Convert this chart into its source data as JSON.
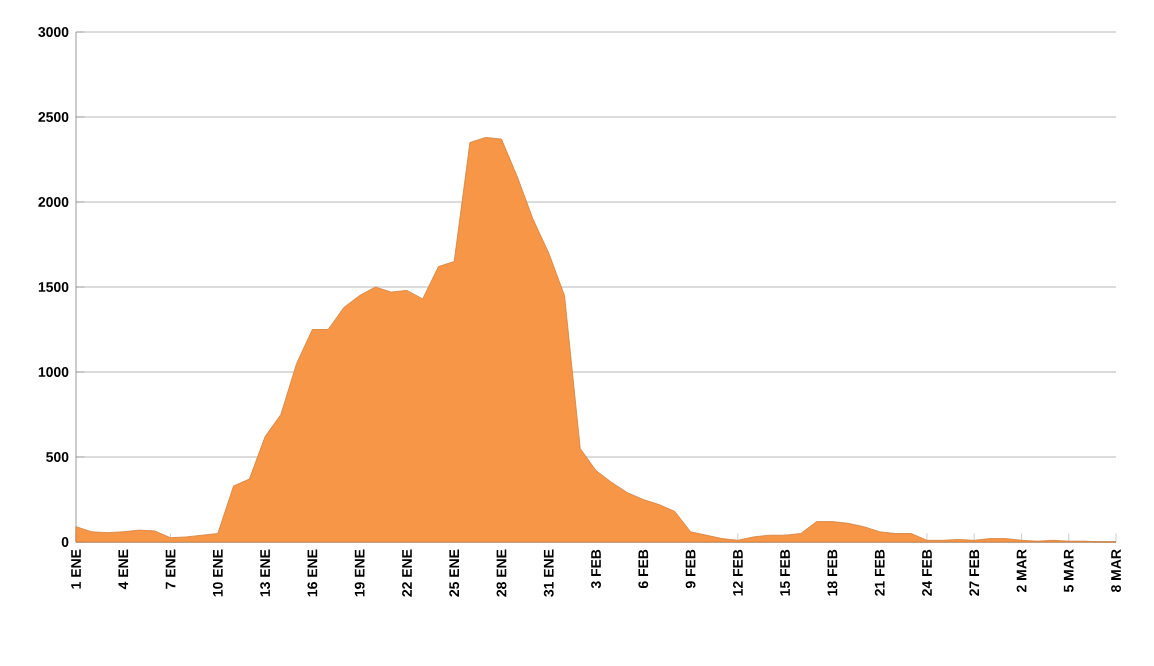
{
  "chart_data": {
    "type": "area",
    "categories": [
      "1 ENE",
      null,
      null,
      "4 ENE",
      null,
      null,
      "7 ENE",
      null,
      null,
      "10 ENE",
      null,
      null,
      "13 ENE",
      null,
      null,
      "16 ENE",
      null,
      null,
      "19 ENE",
      null,
      null,
      "22 ENE",
      null,
      null,
      "25 ENE",
      null,
      null,
      "28 ENE",
      null,
      null,
      "31 ENE",
      null,
      null,
      "3 FEB",
      null,
      null,
      "6 FEB",
      null,
      null,
      "9 FEB",
      null,
      null,
      "12 FEB",
      null,
      null,
      "15 FEB",
      null,
      null,
      "18 FEB",
      null,
      null,
      "21 FEB",
      null,
      null,
      "24 FEB",
      null,
      null,
      "27 FEB",
      null,
      null,
      "2 MAR",
      null,
      null,
      "5 MAR",
      null,
      null,
      "8 MAR"
    ],
    "values": [
      90,
      60,
      55,
      60,
      70,
      65,
      25,
      30,
      40,
      50,
      330,
      370,
      620,
      750,
      1050,
      1250,
      1250,
      1380,
      1450,
      1500,
      1470,
      1480,
      1430,
      1620,
      1650,
      2350,
      2380,
      2370,
      2150,
      1900,
      1700,
      1450,
      550,
      420,
      350,
      290,
      250,
      220,
      180,
      60,
      40,
      20,
      10,
      30,
      40,
      40,
      50,
      120,
      120,
      110,
      90,
      60,
      50,
      50,
      10,
      10,
      15,
      10,
      20,
      20,
      10,
      5,
      10,
      5,
      5,
      0,
      0
    ],
    "color": "#f79646",
    "ylim": [
      0,
      3000
    ],
    "yticks": [
      0,
      500,
      1000,
      1500,
      2000,
      2500,
      3000
    ],
    "grid": "y"
  }
}
